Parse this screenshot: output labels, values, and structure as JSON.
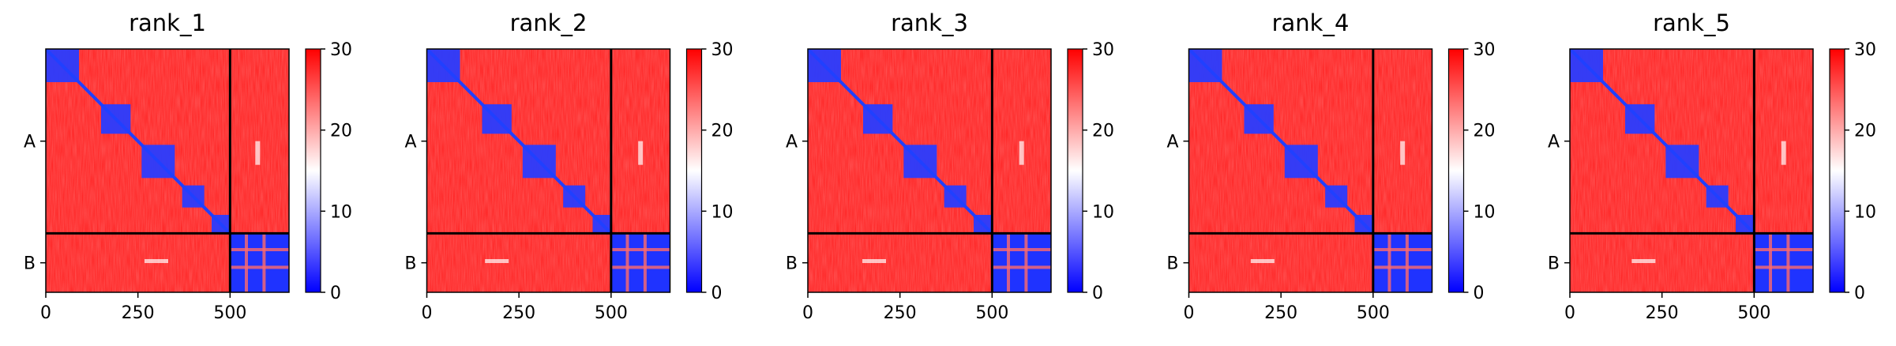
{
  "chart_data": [
    {
      "type": "heatmap",
      "title": "rank_1",
      "colormap": "bwr",
      "vmin": 0,
      "vmax": 30,
      "x_ticks": [
        0,
        250,
        500
      ],
      "x_tick_labels": [
        "0",
        "250",
        "500"
      ],
      "y_tick_labels": [
        "A",
        "B"
      ],
      "chain_boundary": 500,
      "total_length": 660,
      "colorbar_ticks": [
        0,
        10,
        20,
        30
      ],
      "domains": [
        [
          0,
          90
        ],
        [
          150,
          230
        ],
        [
          260,
          350
        ],
        [
          370,
          430
        ],
        [
          450,
          500
        ]
      ],
      "inter_chain_spot": [
        575,
        300
      ]
    },
    {
      "type": "heatmap",
      "title": "rank_2",
      "colormap": "bwr",
      "vmin": 0,
      "vmax": 30,
      "x_ticks": [
        0,
        250,
        500
      ],
      "x_tick_labels": [
        "0",
        "250",
        "500"
      ],
      "y_tick_labels": [
        "A",
        "B"
      ],
      "chain_boundary": 500,
      "total_length": 660,
      "colorbar_ticks": [
        0,
        10,
        20,
        30
      ],
      "domains": [
        [
          0,
          90
        ],
        [
          150,
          230
        ],
        [
          260,
          350
        ],
        [
          370,
          430
        ],
        [
          450,
          500
        ]
      ],
      "inter_chain_spot": [
        580,
        190
      ]
    },
    {
      "type": "heatmap",
      "title": "rank_3",
      "colormap": "bwr",
      "vmin": 0,
      "vmax": 30,
      "x_ticks": [
        0,
        250,
        500
      ],
      "x_tick_labels": [
        "0",
        "250",
        "500"
      ],
      "y_tick_labels": [
        "A",
        "B"
      ],
      "chain_boundary": 500,
      "total_length": 660,
      "colorbar_ticks": [
        0,
        10,
        20,
        30
      ],
      "domains": [
        [
          0,
          90
        ],
        [
          150,
          230
        ],
        [
          260,
          350
        ],
        [
          370,
          430
        ],
        [
          450,
          500
        ]
      ],
      "inter_chain_spot": [
        580,
        180
      ]
    },
    {
      "type": "heatmap",
      "title": "rank_4",
      "colormap": "bwr",
      "vmin": 0,
      "vmax": 30,
      "x_ticks": [
        0,
        250,
        500
      ],
      "x_tick_labels": [
        "0",
        "250",
        "500"
      ],
      "y_tick_labels": [
        "A",
        "B"
      ],
      "chain_boundary": 500,
      "total_length": 660,
      "colorbar_ticks": [
        0,
        10,
        20,
        30
      ],
      "domains": [
        [
          0,
          90
        ],
        [
          150,
          230
        ],
        [
          260,
          350
        ],
        [
          370,
          430
        ],
        [
          450,
          500
        ]
      ],
      "inter_chain_spot": [
        580,
        200
      ]
    },
    {
      "type": "heatmap",
      "title": "rank_5",
      "colormap": "bwr",
      "vmin": 0,
      "vmax": 30,
      "x_ticks": [
        0,
        250,
        500
      ],
      "x_tick_labels": [
        "0",
        "250",
        "500"
      ],
      "y_tick_labels": [
        "A",
        "B"
      ],
      "chain_boundary": 500,
      "total_length": 660,
      "colorbar_ticks": [
        0,
        10,
        20,
        30
      ],
      "domains": [
        [
          0,
          90
        ],
        [
          150,
          230
        ],
        [
          260,
          350
        ],
        [
          370,
          430
        ],
        [
          450,
          500
        ]
      ],
      "inter_chain_spot": [
        580,
        200
      ]
    }
  ]
}
